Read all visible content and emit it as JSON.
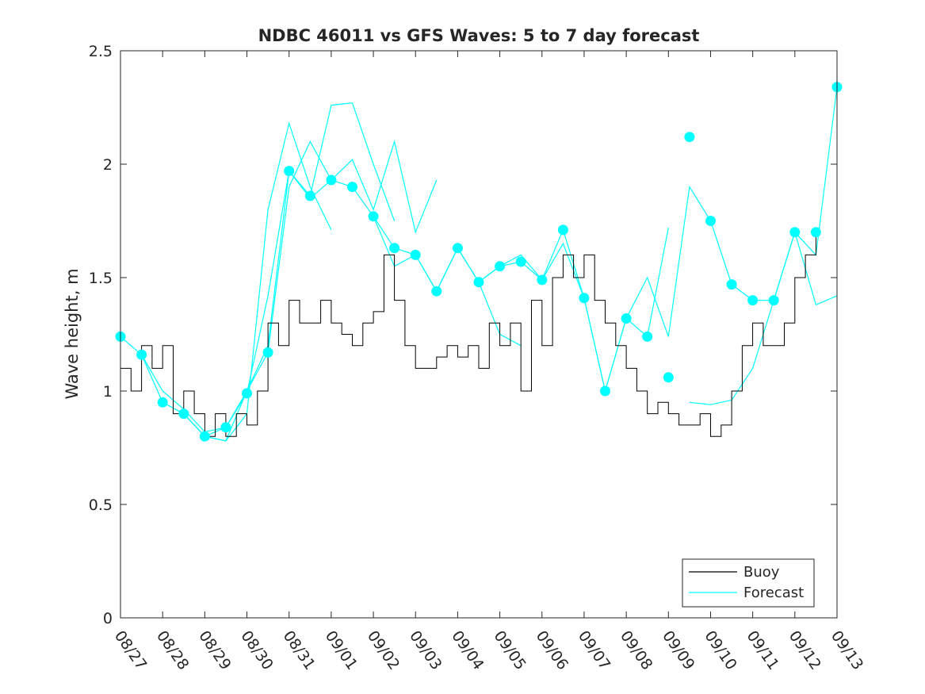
{
  "chart_data": {
    "type": "line",
    "title": "NDBC 46011 vs GFS Waves: 5 to 7 day forecast",
    "xlabel": "",
    "ylabel": "Wave height, m",
    "xlim": [
      0,
      17
    ],
    "ylim": [
      0,
      2.5
    ],
    "x_tick_labels": [
      "08/27",
      "08/28",
      "08/29",
      "08/30",
      "08/31",
      "09/01",
      "09/02",
      "09/03",
      "09/04",
      "09/05",
      "09/06",
      "09/07",
      "09/08",
      "09/09",
      "09/10",
      "09/11",
      "09/12",
      "09/13"
    ],
    "y_tick_labels": [
      "0",
      "0.5",
      "1",
      "1.5",
      "2",
      "2.5"
    ],
    "y_tick_values": [
      0,
      0.5,
      1,
      1.5,
      2,
      2.5
    ],
    "legend": {
      "position": "bottom-right",
      "entries": [
        "Buoy",
        "Forecast"
      ]
    },
    "colors": {
      "buoy": "#000000",
      "forecast": "#00ffff",
      "axes": "#262626"
    },
    "series": [
      {
        "name": "Buoy",
        "x": [
          0.0,
          0.25,
          0.5,
          0.75,
          1.0,
          1.25,
          1.5,
          1.75,
          2.0,
          2.25,
          2.5,
          2.75,
          3.0,
          3.25,
          3.5,
          3.75,
          4.0,
          4.25,
          4.5,
          4.75,
          5.0,
          5.25,
          5.5,
          5.75,
          6.0,
          6.25,
          6.5,
          6.75,
          7.0,
          7.25,
          7.5,
          7.75,
          8.0,
          8.25,
          8.5,
          8.75,
          9.0,
          9.25,
          9.5,
          9.75,
          10.0,
          10.25,
          10.5,
          10.75,
          11.0,
          11.25,
          11.5,
          11.75,
          12.0,
          12.25,
          12.5,
          12.75,
          13.0,
          13.25,
          13.5,
          13.75,
          14.0,
          14.25,
          14.5,
          14.75,
          15.0,
          15.25,
          15.5,
          15.75,
          16.0,
          16.25,
          16.5
        ],
        "y": [
          1.1,
          1.0,
          1.2,
          1.1,
          1.2,
          0.9,
          1.0,
          0.9,
          0.8,
          0.9,
          0.8,
          0.9,
          0.85,
          1.0,
          1.3,
          1.2,
          1.4,
          1.3,
          1.3,
          1.4,
          1.3,
          1.25,
          1.2,
          1.3,
          1.35,
          1.6,
          1.4,
          1.2,
          1.1,
          1.1,
          1.15,
          1.2,
          1.15,
          1.2,
          1.1,
          1.3,
          1.2,
          1.3,
          1.0,
          1.4,
          1.2,
          1.5,
          1.6,
          1.5,
          1.6,
          1.4,
          1.3,
          1.2,
          1.1,
          1.0,
          0.9,
          0.95,
          0.9,
          0.85,
          0.85,
          0.9,
          0.8,
          0.85,
          1.0,
          1.2,
          1.3,
          1.2,
          1.2,
          1.3,
          1.5,
          1.6,
          1.7
        ]
      },
      {
        "name": "Forecast",
        "x": [
          0.0,
          0.5,
          1.0,
          1.5,
          2.0,
          2.5,
          3.0,
          3.5,
          4.0,
          4.5,
          5.0,
          5.5,
          6.0,
          6.5,
          7.0,
          7.5,
          8.0,
          8.5,
          9.0,
          9.5,
          10.0,
          10.5,
          11.0,
          11.5,
          12.0,
          12.5,
          13.0,
          13.5,
          14.0,
          14.5,
          15.0,
          15.5,
          16.0,
          16.5,
          17.0
        ],
        "y": [
          1.24,
          1.16,
          0.95,
          0.9,
          0.8,
          0.84,
          0.99,
          1.17,
          1.97,
          1.86,
          1.93,
          1.9,
          1.77,
          1.63,
          1.6,
          1.44,
          1.63,
          1.48,
          1.55,
          1.57,
          1.49,
          1.71,
          1.41,
          1.0,
          1.32,
          1.24,
          1.06,
          2.12,
          1.75,
          1.47,
          1.4,
          1.4,
          1.7,
          1.7,
          2.34
        ]
      }
    ],
    "forecast_runs": [
      {
        "x": [
          0.0,
          0.5,
          1.0,
          1.5,
          2.0,
          2.5,
          3.0,
          3.5,
          4.0,
          4.5,
          5.0
        ],
        "y": [
          1.24,
          1.16,
          0.95,
          0.9,
          0.8,
          0.78,
          0.9,
          1.8,
          2.18,
          1.9,
          1.71
        ]
      },
      {
        "x": [
          0.5,
          1.0,
          1.5,
          2.0,
          2.5,
          3.0,
          3.5,
          4.0,
          4.5,
          5.0,
          5.5,
          6.0,
          6.5
        ],
        "y": [
          1.16,
          1.0,
          0.92,
          0.82,
          0.84,
          0.99,
          1.42,
          1.97,
          1.86,
          2.26,
          2.27,
          2.0,
          1.75
        ]
      },
      {
        "x": [
          1.0,
          1.5,
          2.0,
          2.5,
          3.0,
          3.5,
          4.0,
          4.5,
          5.0,
          5.5,
          6.0,
          6.5,
          7.0,
          7.5
        ],
        "y": [
          0.95,
          0.9,
          0.8,
          0.84,
          1.0,
          1.17,
          1.9,
          2.1,
          1.93,
          2.02,
          1.8,
          2.1,
          1.7,
          1.93
        ]
      },
      {
        "x": [
          1.5,
          2.0,
          2.5,
          3.0,
          3.5,
          4.0,
          4.5,
          5.0,
          5.5,
          6.0,
          6.5,
          7.0,
          7.5,
          8.0,
          8.5,
          9.0,
          9.5
        ],
        "y": [
          0.9,
          0.8,
          0.78,
          1.0,
          1.2,
          1.97,
          1.85,
          1.93,
          1.9,
          1.77,
          1.55,
          1.6,
          1.44,
          1.63,
          1.48,
          1.25,
          1.2
        ]
      },
      {
        "x": [
          6.0,
          6.5,
          7.0,
          7.5,
          8.0,
          8.5,
          9.0,
          9.5,
          10.0,
          10.5,
          11.0,
          11.5,
          12.0,
          12.5,
          13.0
        ],
        "y": [
          1.77,
          1.63,
          1.6,
          1.44,
          1.63,
          1.48,
          1.55,
          1.57,
          1.49,
          1.71,
          1.41,
          1.0,
          1.32,
          1.24,
          1.72
        ]
      },
      {
        "x": [
          8.5,
          9.0,
          9.5,
          10.0,
          10.5,
          11.0,
          11.5,
          12.0,
          12.5,
          13.0,
          13.5,
          14.0,
          14.5,
          15.0,
          15.5,
          16.0,
          16.5,
          17.0
        ],
        "y": [
          1.48,
          1.55,
          1.6,
          1.49,
          1.65,
          1.41,
          1.0,
          1.32,
          1.5,
          1.24,
          1.9,
          1.75,
          1.47,
          1.4,
          1.4,
          1.7,
          1.6,
          2.34
        ]
      },
      {
        "x": [
          13.5,
          14.0,
          14.5,
          15.0,
          15.5,
          16.0,
          16.5,
          17.0
        ],
        "y": [
          0.95,
          0.94,
          0.96,
          1.1,
          1.4,
          1.7,
          1.38,
          1.42
        ]
      }
    ]
  }
}
